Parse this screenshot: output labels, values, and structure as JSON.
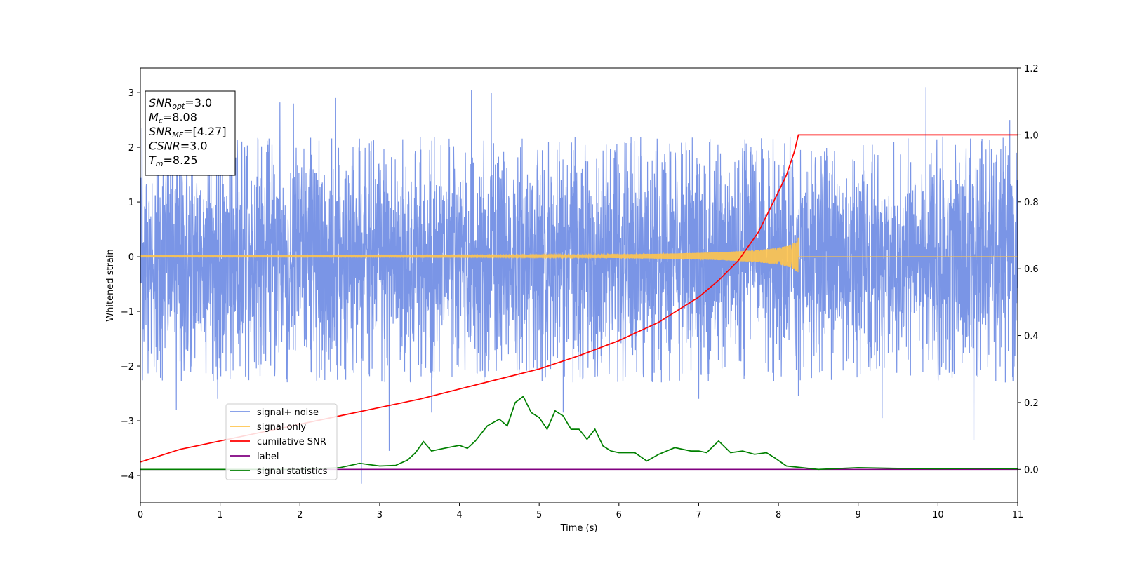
{
  "chart_data": {
    "type": "line",
    "xlabel": "Time (s)",
    "ylabel_left": "Whitened strain",
    "ylabel_right": "",
    "xlim": [
      0,
      11
    ],
    "ylim_left": [
      -4.5,
      3.45
    ],
    "ylim_right": [
      -0.1,
      1.2
    ],
    "xticks": [
      "0",
      "1",
      "2",
      "3",
      "4",
      "5",
      "6",
      "7",
      "8",
      "9",
      "10",
      "11"
    ],
    "yticks_left": [
      "3",
      "2",
      "1",
      "0",
      "−1",
      "−2",
      "−3",
      "−4"
    ],
    "yticks_right": [
      "1.2",
      "1.0",
      "0.8",
      "0.6",
      "0.4",
      "0.2",
      "0.0"
    ],
    "grid": false,
    "legend_position": "lower-left",
    "info_box": {
      "lines": [
        {
          "var": "SNR",
          "sub": "opt",
          "value": "=3.0"
        },
        {
          "var": "M",
          "sub": "c",
          "value": "=8.08"
        },
        {
          "var": "SNR",
          "sub": "MF",
          "value": "=[4.27]"
        },
        {
          "var": "CSNR",
          "sub": "",
          "value": "=3.0"
        },
        {
          "var": "T",
          "sub": "m",
          "value": "=8.25"
        }
      ]
    },
    "series": [
      {
        "name": "signal+ noise",
        "axis": "left",
        "color": "#7a95e6",
        "kind": "noise",
        "x_range": [
          0,
          11
        ],
        "typical_range": [
          -2.0,
          1.9
        ],
        "extremes": [
          {
            "x": 0.02,
            "y": 2.35
          },
          {
            "x": 0.45,
            "y": -2.8
          },
          {
            "x": 0.97,
            "y": -2.6
          },
          {
            "x": 1.75,
            "y": 2.82
          },
          {
            "x": 1.92,
            "y": 2.8
          },
          {
            "x": 2.45,
            "y": 2.9
          },
          {
            "x": 2.77,
            "y": -4.15
          },
          {
            "x": 3.12,
            "y": -3.55
          },
          {
            "x": 4.15,
            "y": 3.05
          },
          {
            "x": 4.4,
            "y": 3.0
          },
          {
            "x": 3.65,
            "y": -2.85
          },
          {
            "x": 5.3,
            "y": -2.85
          },
          {
            "x": 7.0,
            "y": -2.6
          },
          {
            "x": 8.25,
            "y": -2.55
          },
          {
            "x": 9.3,
            "y": -2.95
          },
          {
            "x": 9.85,
            "y": 3.1
          },
          {
            "x": 10.45,
            "y": -3.35
          },
          {
            "x": 10.9,
            "y": 2.5
          }
        ]
      },
      {
        "name": "signal only",
        "axis": "left",
        "color": "#ffc44d",
        "kind": "chirp",
        "x_range": [
          0,
          11
        ],
        "merger_time": 8.25,
        "peak_amplitude": 0.35
      },
      {
        "name": "cumilative SNR",
        "axis": "right",
        "color": "#ff0000",
        "x": [
          0,
          0.5,
          1,
          1.5,
          2,
          2.5,
          3,
          3.5,
          4,
          4.5,
          5,
          5.5,
          6,
          6.5,
          7,
          7.25,
          7.5,
          7.75,
          8.0,
          8.1,
          8.2,
          8.25,
          9,
          10,
          11
        ],
        "values": [
          0.022,
          0.06,
          0.085,
          0.11,
          0.135,
          0.16,
          0.185,
          0.21,
          0.24,
          0.27,
          0.3,
          0.34,
          0.385,
          0.44,
          0.515,
          0.565,
          0.625,
          0.71,
          0.83,
          0.88,
          0.95,
          1.0,
          1.0,
          1.0,
          1.0
        ]
      },
      {
        "name": "label",
        "axis": "right",
        "color": "#800080",
        "x": [
          0,
          11
        ],
        "values": [
          0,
          0
        ]
      },
      {
        "name": "signal statistics",
        "axis": "right",
        "color": "#008000",
        "x": [
          0,
          1,
          2,
          2.5,
          2.75,
          3.0,
          3.2,
          3.35,
          3.45,
          3.55,
          3.65,
          3.75,
          3.85,
          4.0,
          4.1,
          4.2,
          4.35,
          4.5,
          4.6,
          4.7,
          4.8,
          4.9,
          5.0,
          5.1,
          5.2,
          5.3,
          5.4,
          5.5,
          5.6,
          5.7,
          5.8,
          5.9,
          6.0,
          6.2,
          6.35,
          6.5,
          6.7,
          6.9,
          7.0,
          7.1,
          7.25,
          7.4,
          7.55,
          7.7,
          7.85,
          7.95,
          8.1,
          8.5,
          9.0,
          9.5,
          10,
          10.5,
          11
        ],
        "values": [
          0.0,
          0.0,
          0.0,
          0.005,
          0.018,
          0.01,
          0.012,
          0.028,
          0.05,
          0.083,
          0.055,
          0.06,
          0.065,
          0.072,
          0.063,
          0.085,
          0.13,
          0.15,
          0.13,
          0.2,
          0.218,
          0.17,
          0.155,
          0.12,
          0.175,
          0.16,
          0.12,
          0.12,
          0.09,
          0.12,
          0.07,
          0.055,
          0.05,
          0.05,
          0.025,
          0.045,
          0.065,
          0.055,
          0.055,
          0.05,
          0.085,
          0.05,
          0.055,
          0.045,
          0.05,
          0.035,
          0.01,
          0.0,
          0.005,
          0.003,
          0.002,
          0.003,
          0.002
        ]
      }
    ]
  }
}
